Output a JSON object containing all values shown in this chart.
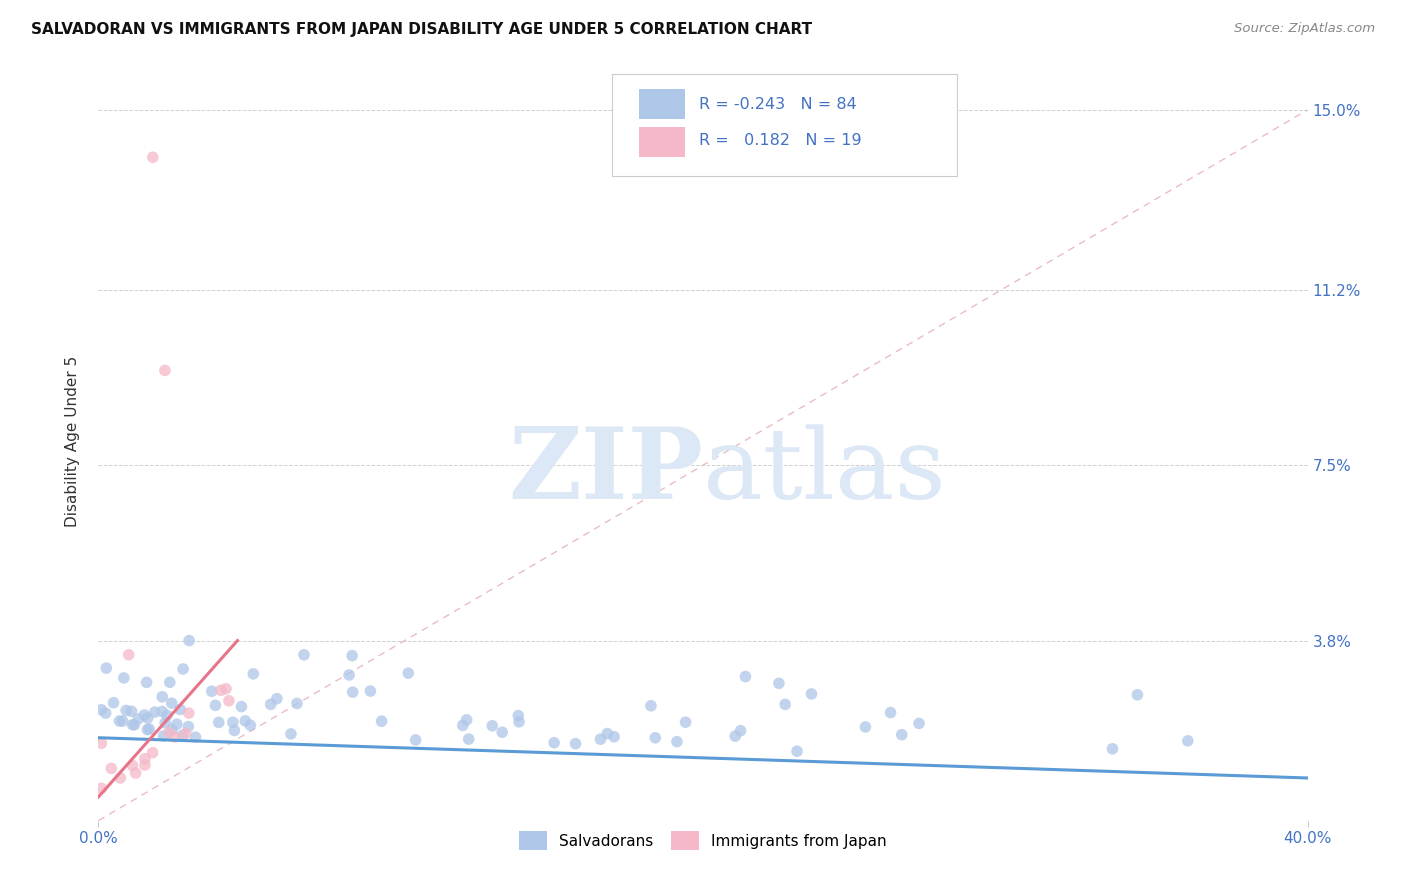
{
  "title": "SALVADORAN VS IMMIGRANTS FROM JAPAN DISABILITY AGE UNDER 5 CORRELATION CHART",
  "source": "Source: ZipAtlas.com",
  "ylabel": "Disability Age Under 5",
  "xlim": [
    0.0,
    0.4
  ],
  "ylim": [
    0.0,
    0.16
  ],
  "xtick_vals": [
    0.0,
    0.4
  ],
  "xtick_labels": [
    "0.0%",
    "40.0%"
  ],
  "ytick_vals": [
    0.0,
    0.038,
    0.075,
    0.112,
    0.15
  ],
  "ytick_labels": [
    "",
    "3.8%",
    "7.5%",
    "11.2%",
    "15.0%"
  ],
  "bg_color": "#ffffff",
  "scatter_blue_color": "#aec6e8",
  "scatter_pink_color": "#f4b8c8",
  "line_blue_color": "#5b9bd5",
  "line_pink_color": "#e8748a",
  "diag_line_color": "#e8b4c0",
  "ytick_color": "#4472c4",
  "xtick_color": "#4472c4",
  "scatter_size": 70,
  "scatter_alpha": 0.75,
  "blue_line_x0": 0.0,
  "blue_line_y0": 0.0175,
  "blue_line_x1": 0.4,
  "blue_line_y1": 0.009,
  "pink_line_x0": 0.0,
  "pink_line_y0": 0.005,
  "pink_line_x1": 0.046,
  "pink_line_y1": 0.038,
  "watermark_zip": "ZIP",
  "watermark_atlas": "atlas",
  "watermark_color": "#dce8f5"
}
